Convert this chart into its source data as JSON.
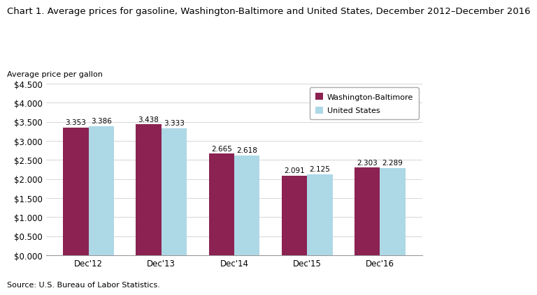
{
  "title": "Chart 1. Average prices for gasoline, Washington-Baltimore and United States, December 2012–December 2016",
  "ylabel": "Average price per gallon",
  "source": "Source: U.S. Bureau of Labor Statistics.",
  "categories": [
    "Dec'12",
    "Dec'13",
    "Dec'14",
    "Dec'15",
    "Dec'16"
  ],
  "washington_baltimore": [
    3.353,
    3.438,
    2.665,
    2.091,
    2.303
  ],
  "united_states": [
    3.386,
    3.333,
    2.618,
    2.125,
    2.289
  ],
  "color_wb": "#8B2252",
  "color_us": "#ADD8E6",
  "ylim": [
    0,
    4.5
  ],
  "yticks": [
    0.0,
    0.5,
    1.0,
    1.5,
    2.0,
    2.5,
    3.0,
    3.5,
    4.0,
    4.5
  ],
  "legend_wb": "Washington-Baltimore",
  "legend_us": "United States",
  "bar_width": 0.35,
  "title_fontsize": 9.5,
  "ylabel_fontsize": 8,
  "tick_fontsize": 8.5,
  "annotation_fontsize": 7.5,
  "source_fontsize": 8,
  "legend_fontsize": 8,
  "background_color": "#ffffff"
}
